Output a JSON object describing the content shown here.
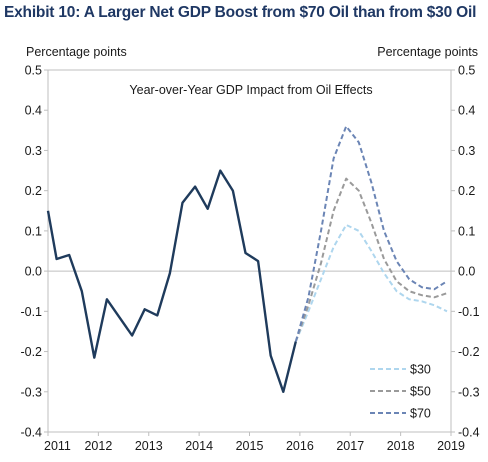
{
  "exhibit_title": "Exhibit 10: A Larger Net GDP Boost from $70 Oil than from $30 Oil",
  "chart_data": {
    "type": "line",
    "title": "Year-over-Year  GDP Impact from Oil Effects",
    "ylabel_left": "Percentage  points",
    "ylabel_right": "Percentage  points",
    "ylim": [
      -0.4,
      0.5
    ],
    "xlim": [
      2011,
      2019
    ],
    "x_ticks": [
      "2011",
      "2012",
      "2013",
      "2014",
      "2015",
      "2016",
      "2017",
      "2018",
      "2019"
    ],
    "y_ticks": [
      "0.5",
      "0.4",
      "0.3",
      "0.2",
      "0.1",
      "0.0",
      "-0.1",
      "-0.2",
      "-0.3",
      "-0.4"
    ],
    "grid": false,
    "legend_position": "bottom-right",
    "series": [
      {
        "color": "#1f3b5c",
        "style": "solid",
        "x": [
          2011.0,
          2011.17,
          2011.42,
          2011.67,
          2011.92,
          2012.17,
          2012.42,
          2012.67,
          2012.92,
          2013.17,
          2013.42,
          2013.67,
          2013.92,
          2014.17,
          2014.42,
          2014.67,
          2014.92,
          2015.17,
          2015.42,
          2015.67,
          2015.92
        ],
        "values": [
          0.15,
          0.03,
          0.04,
          -0.05,
          -0.215,
          -0.07,
          -0.115,
          -0.16,
          -0.095,
          -0.11,
          -0.005,
          0.17,
          0.21,
          0.155,
          0.25,
          0.2,
          0.045,
          0.025,
          -0.21,
          -0.3,
          -0.175
        ]
      },
      {
        "name": "$30",
        "color": "#aed6ee",
        "style": "dashed",
        "x": [
          2015.92,
          2016.17,
          2016.42,
          2016.67,
          2016.92,
          2017.17,
          2017.42,
          2017.67,
          2017.92,
          2018.17,
          2018.42,
          2018.67,
          2018.92
        ],
        "values": [
          -0.175,
          -0.1,
          -0.02,
          0.06,
          0.115,
          0.1,
          0.05,
          -0.005,
          -0.05,
          -0.07,
          -0.075,
          -0.085,
          -0.1
        ]
      },
      {
        "name": "$50",
        "color": "#9a9a9a",
        "style": "dashed",
        "x": [
          2015.92,
          2016.17,
          2016.42,
          2016.67,
          2016.92,
          2017.17,
          2017.42,
          2017.67,
          2017.92,
          2018.17,
          2018.42,
          2018.67,
          2018.92
        ],
        "values": [
          -0.175,
          -0.085,
          0.02,
          0.15,
          0.23,
          0.2,
          0.12,
          0.03,
          -0.025,
          -0.05,
          -0.06,
          -0.065,
          -0.055
        ]
      },
      {
        "name": "$70",
        "color": "#6b85b5",
        "style": "dashed",
        "x": [
          2015.92,
          2016.17,
          2016.42,
          2016.67,
          2016.92,
          2017.17,
          2017.42,
          2017.67,
          2017.92,
          2018.17,
          2018.42,
          2018.67,
          2018.92
        ],
        "values": [
          -0.175,
          -0.065,
          0.1,
          0.28,
          0.36,
          0.32,
          0.22,
          0.1,
          0.025,
          -0.02,
          -0.04,
          -0.045,
          -0.025
        ]
      }
    ]
  }
}
